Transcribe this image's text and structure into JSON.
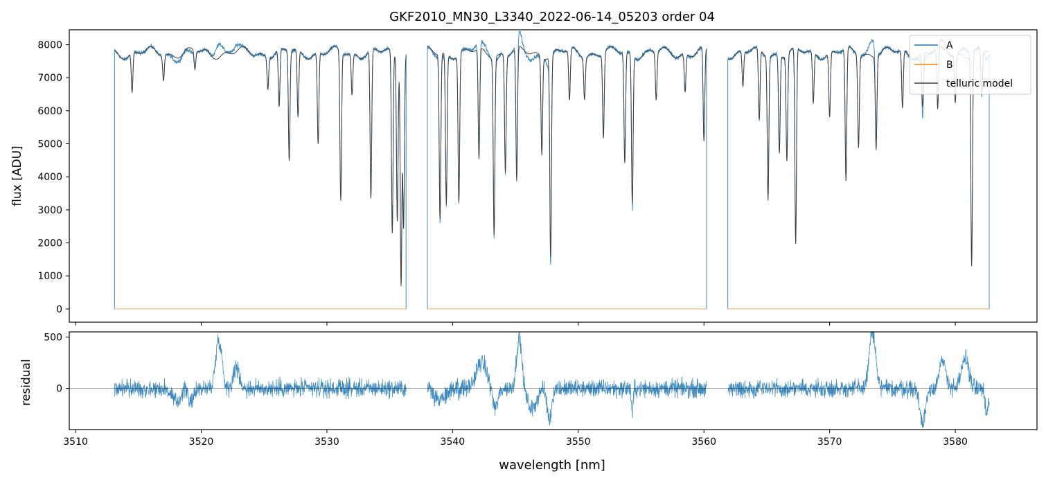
{
  "figure": {
    "title": "GKF2010_MN30_L3340_2022-06-14_05203  order 04"
  },
  "chart_data": [
    {
      "type": "line",
      "panel": "top",
      "title": "GKF2010_MN30_L3340_2022-06-14_05203  order 04",
      "xlabel": "",
      "ylabel": "flux [ADU]",
      "xlim": [
        3509.5,
        3586.5
      ],
      "ylim": [
        -400,
        8450
      ],
      "x_ticks": [
        3510,
        3520,
        3530,
        3540,
        3550,
        3560,
        3570,
        3580
      ],
      "y_ticks": [
        0,
        1000,
        2000,
        3000,
        4000,
        5000,
        6000,
        7000,
        8000
      ],
      "y_tick_labels": [
        "0",
        "1000",
        "2000",
        "3000",
        "4000",
        "5000",
        "6000",
        "7000",
        "8000"
      ],
      "legend": {
        "position": "top-right",
        "entries": [
          "A",
          "B",
          "telluric model"
        ]
      },
      "segments": [
        [
          3513.1,
          3536.3
        ],
        [
          3538.0,
          3560.2
        ],
        [
          3561.9,
          3582.7
        ]
      ],
      "continuum_level": 7750,
      "absorption_lines": [
        {
          "x": 3514.5,
          "min": 6550
        },
        {
          "x": 3517.0,
          "min": 7000
        },
        {
          "x": 3519.5,
          "min": 7200
        },
        {
          "x": 3525.3,
          "min": 6800
        },
        {
          "x": 3526.2,
          "min": 6000
        },
        {
          "x": 3527.0,
          "min": 4450
        },
        {
          "x": 3527.7,
          "min": 5700
        },
        {
          "x": 3529.3,
          "min": 5000
        },
        {
          "x": 3531.1,
          "min": 3230
        },
        {
          "x": 3532.0,
          "min": 6500
        },
        {
          "x": 3533.5,
          "min": 3250
        },
        {
          "x": 3535.2,
          "min": 2230
        },
        {
          "x": 3535.6,
          "min": 2800
        },
        {
          "x": 3535.9,
          "min": 900
        },
        {
          "x": 3536.1,
          "min": 2600
        },
        {
          "x": 3539.0,
          "min": 2750
        },
        {
          "x": 3539.5,
          "min": 3200
        },
        {
          "x": 3540.5,
          "min": 3250
        },
        {
          "x": 3542.1,
          "min": 4400
        },
        {
          "x": 3543.3,
          "min": 2400
        },
        {
          "x": 3544.2,
          "min": 4200
        },
        {
          "x": 3545.1,
          "min": 3700
        },
        {
          "x": 3547.1,
          "min": 4800
        },
        {
          "x": 3547.8,
          "min": 1650
        },
        {
          "x": 3549.3,
          "min": 6200
        },
        {
          "x": 3550.5,
          "min": 6500
        },
        {
          "x": 3552.0,
          "min": 5200
        },
        {
          "x": 3553.7,
          "min": 4400
        },
        {
          "x": 3554.3,
          "min": 3280
        },
        {
          "x": 3556.2,
          "min": 6300
        },
        {
          "x": 3558.5,
          "min": 6600
        },
        {
          "x": 3560.0,
          "min": 4900
        },
        {
          "x": 3563.1,
          "min": 6700
        },
        {
          "x": 3564.4,
          "min": 5600
        },
        {
          "x": 3565.1,
          "min": 3450
        },
        {
          "x": 3566.0,
          "min": 4800
        },
        {
          "x": 3566.6,
          "min": 4550
        },
        {
          "x": 3567.3,
          "min": 1800
        },
        {
          "x": 3568.7,
          "min": 6200
        },
        {
          "x": 3570.0,
          "min": 5800
        },
        {
          "x": 3571.3,
          "min": 3720
        },
        {
          "x": 3572.3,
          "min": 5000
        },
        {
          "x": 3573.7,
          "min": 4950
        },
        {
          "x": 3575.8,
          "min": 6000
        },
        {
          "x": 3577.4,
          "min": 6100
        },
        {
          "x": 3578.6,
          "min": 5900
        },
        {
          "x": 3580.0,
          "min": 6300
        },
        {
          "x": 3581.3,
          "min": 1350
        },
        {
          "x": 3582.1,
          "min": 6350
        }
      ],
      "series": [
        {
          "name": "A",
          "color": "#1f77b4",
          "note_level": "observed spectrum"
        },
        {
          "name": "B",
          "color": "#ff7f0e",
          "level": 0
        },
        {
          "name": "telluric model",
          "color": "#404040"
        }
      ]
    },
    {
      "type": "line",
      "panel": "bottom",
      "xlabel": "wavelength [nm]",
      "ylabel": "residual",
      "xlim": [
        3509.5,
        3586.5
      ],
      "ylim": [
        -400,
        550
      ],
      "x_ticks": [
        3510,
        3520,
        3530,
        3540,
        3550,
        3560,
        3570,
        3580
      ],
      "x_tick_labels": [
        "3510",
        "3520",
        "3530",
        "3540",
        "3550",
        "3560",
        "3570",
        "3580"
      ],
      "y_ticks": [
        0,
        500
      ],
      "y_tick_labels": [
        "0",
        "500"
      ],
      "zero_line": true,
      "residual_features": [
        {
          "x": 3521.4,
          "amp": 480,
          "w": 0.35
        },
        {
          "x": 3522.8,
          "amp": 200,
          "w": 0.35
        },
        {
          "x": 3518.0,
          "amp": -130,
          "w": 0.5
        },
        {
          "x": 3519.2,
          "amp": -150,
          "w": 0.25
        },
        {
          "x": 3539.0,
          "amp": -120,
          "w": 0.6
        },
        {
          "x": 3542.3,
          "amp": 250,
          "w": 0.6
        },
        {
          "x": 3545.3,
          "amp": 500,
          "w": 0.3
        },
        {
          "x": 3543.4,
          "amp": -200,
          "w": 0.3
        },
        {
          "x": 3546.3,
          "amp": -200,
          "w": 0.5
        },
        {
          "x": 3547.7,
          "amp": -300,
          "w": 0.25
        },
        {
          "x": 3554.3,
          "amp": -250,
          "w": 0.1
        },
        {
          "x": 3573.4,
          "amp": 550,
          "w": 0.35
        },
        {
          "x": 3577.4,
          "amp": -350,
          "w": 0.3
        },
        {
          "x": 3579.0,
          "amp": 250,
          "w": 0.4
        },
        {
          "x": 3580.8,
          "amp": 300,
          "w": 0.4
        },
        {
          "x": 3582.5,
          "amp": -250,
          "w": 0.2
        }
      ],
      "series": [
        {
          "name": "",
          "color": "#1f77b4"
        }
      ]
    }
  ]
}
